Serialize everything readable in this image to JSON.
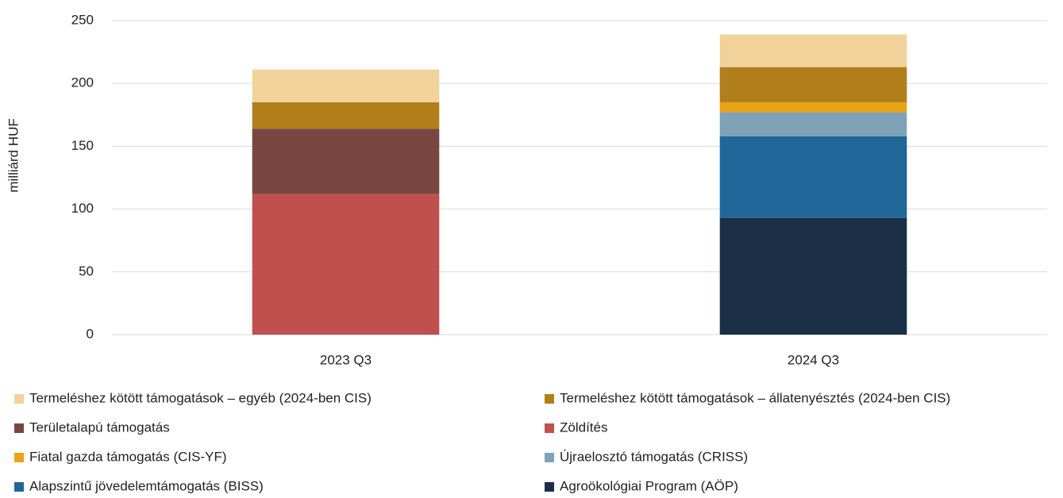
{
  "chart_data": {
    "type": "stacked-bar",
    "y_label": "milliárd HUF",
    "categories": [
      "2023 Q3",
      "2024 Q3"
    ],
    "series": [
      {
        "name": "Termeléshez kötött támogatások – egyéb (2024-ben CIS)",
        "color": "#F2D29B",
        "values": [
          26,
          26
        ]
      },
      {
        "name": "Termeléshez kötött támogatások – állatenyésztés (2024-ben CIS)",
        "color": "#B07F1C",
        "values": [
          21,
          28
        ]
      },
      {
        "name": "Területalapú támogatás",
        "color": "#7A4640",
        "values": [
          52,
          null
        ]
      },
      {
        "name": "Zöldítés",
        "color": "#C0504D",
        "values": [
          112,
          null
        ]
      },
      {
        "name": "Fiatal gazda támogatás (CIS-YF)",
        "color": "#E8A317",
        "values": [
          null,
          8
        ]
      },
      {
        "name": "Újraelosztó támogatás (CRISS)",
        "color": "#7FA2B6",
        "values": [
          null,
          19
        ]
      },
      {
        "name": "Alapszintű jövedelemtámogatás (BISS)",
        "color": "#1F6699",
        "values": [
          null,
          65
        ]
      },
      {
        "name": "Agroökológiai Program (AÖP)",
        "color": "#1B3046",
        "values": [
          null,
          93
        ]
      }
    ],
    "ylim": [
      0,
      250
    ],
    "yticks": [
      0,
      50,
      100,
      150,
      200,
      250
    ],
    "grid": true
  }
}
